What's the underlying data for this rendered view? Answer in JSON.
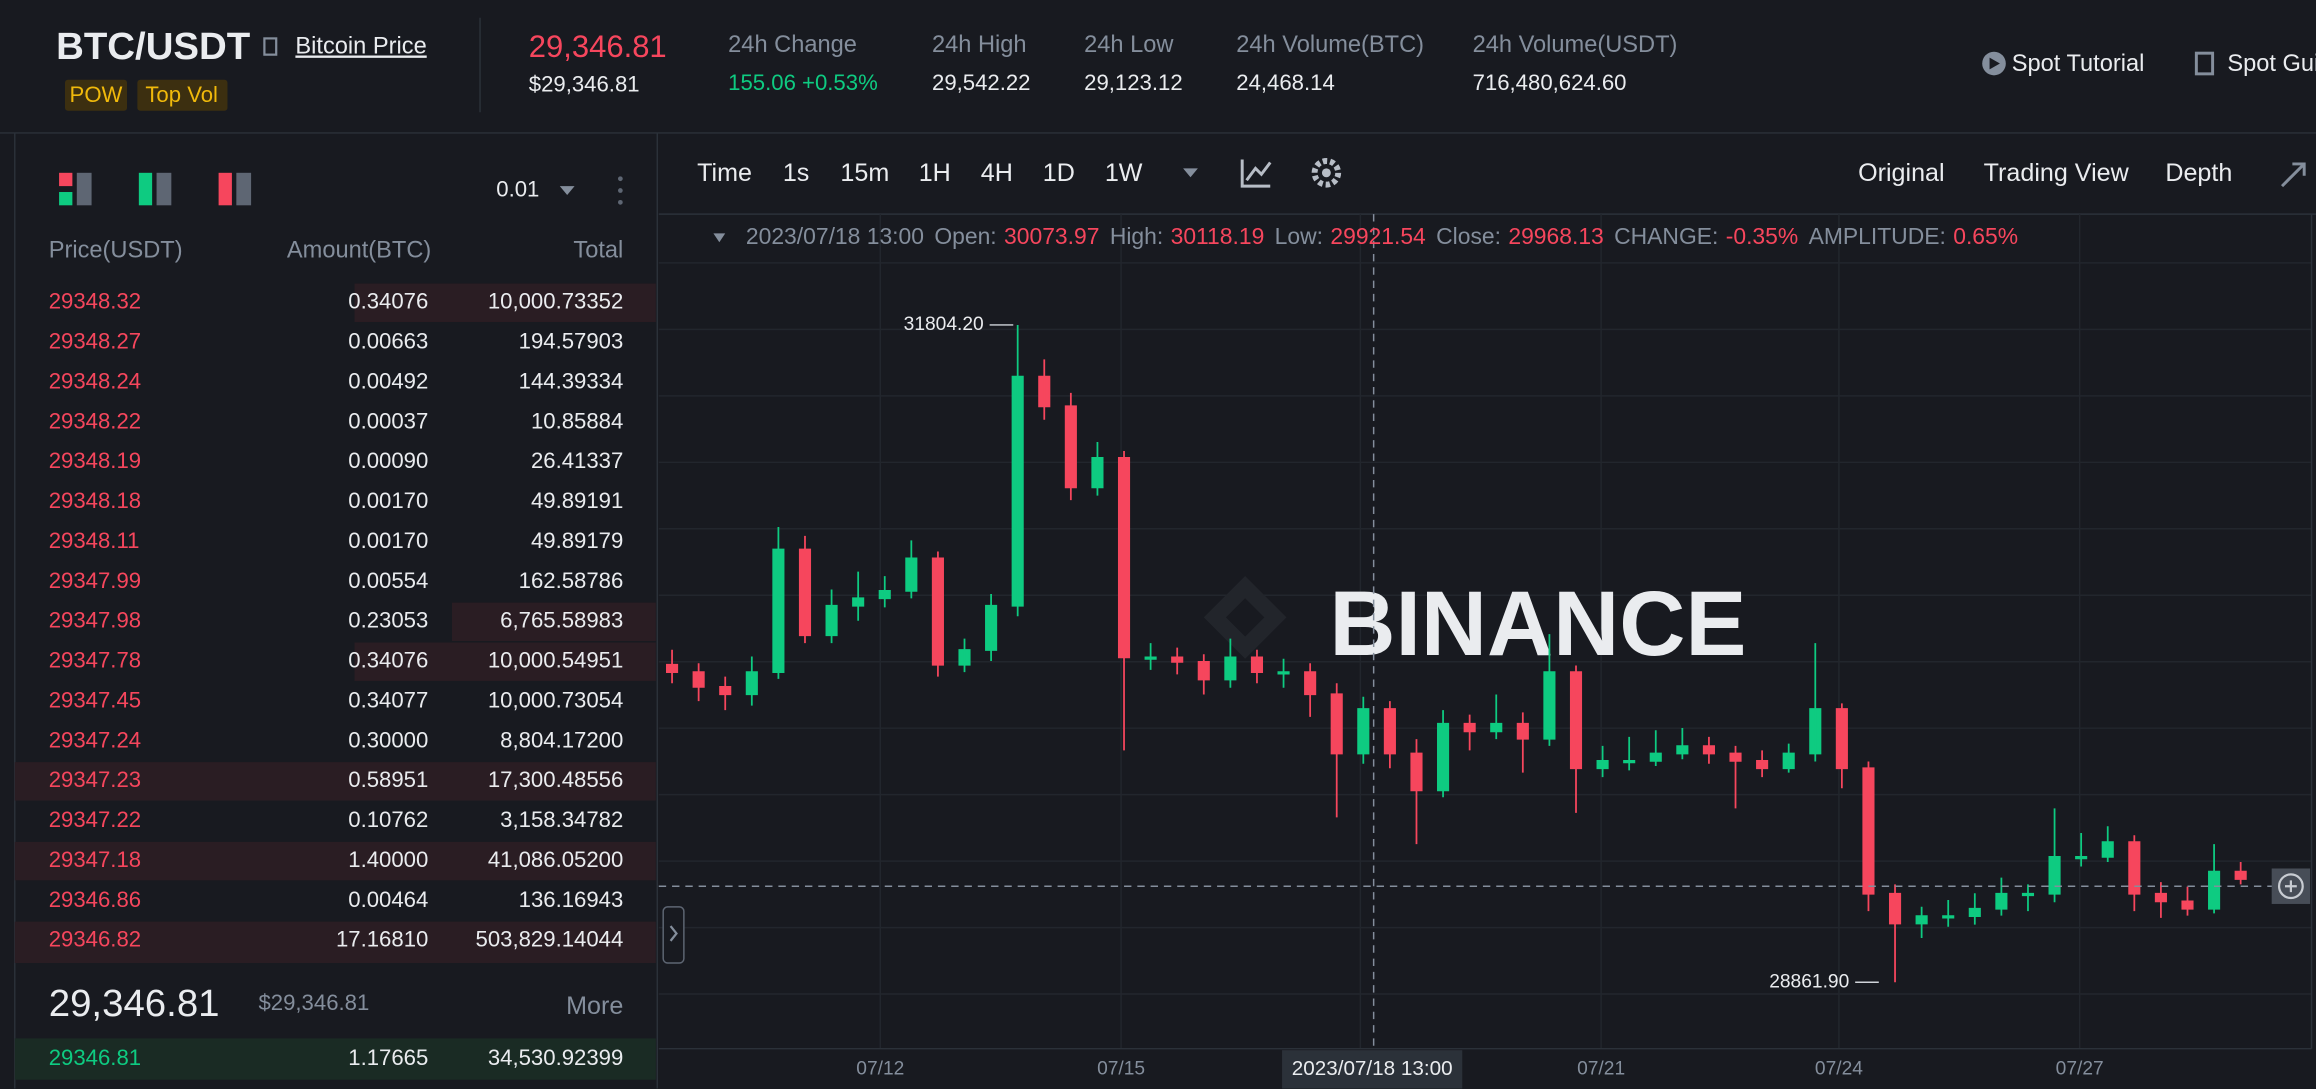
{
  "header": {
    "pair": "BTC/USDT",
    "link": "Bitcoin Price",
    "tags": [
      "POW",
      "Top Vol"
    ],
    "last_price": "29,346.81",
    "last_price_usd": "$29,346.81",
    "stats": [
      {
        "label": "24h Change",
        "value": "155.06 +0.53%"
      },
      {
        "label": "24h High",
        "value": "29,542.22"
      },
      {
        "label": "24h Low",
        "value": "29,123.12"
      },
      {
        "label": "24h Volume(BTC)",
        "value": "24,468.14"
      },
      {
        "label": "24h Volume(USDT)",
        "value": "716,480,624.60"
      }
    ],
    "links": [
      "Spot Tutorial",
      "Spot Guide"
    ]
  },
  "orderbook": {
    "precision": "0.01",
    "columns": [
      "Price(USDT)",
      "Amount(BTC)",
      "Total"
    ],
    "asks": [
      [
        "29348.32",
        "0.34076",
        "10,000.73352"
      ],
      [
        "29348.27",
        "0.00663",
        "194.57903"
      ],
      [
        "29348.24",
        "0.00492",
        "144.39334"
      ],
      [
        "29348.22",
        "0.00037",
        "10.85884"
      ],
      [
        "29348.19",
        "0.00090",
        "26.41337"
      ],
      [
        "29348.18",
        "0.00170",
        "49.89191"
      ],
      [
        "29348.11",
        "0.00170",
        "49.89179"
      ],
      [
        "29347.99",
        "0.00554",
        "162.58786"
      ],
      [
        "29347.98",
        "0.23053",
        "6,765.58983"
      ],
      [
        "29347.78",
        "0.34076",
        "10,000.54951"
      ],
      [
        "29347.45",
        "0.34077",
        "10,000.73054"
      ],
      [
        "29347.24",
        "0.30000",
        "8,804.17200"
      ],
      [
        "29347.23",
        "0.58951",
        "17,300.48556"
      ],
      [
        "29347.22",
        "0.10762",
        "3,158.34782"
      ],
      [
        "29347.18",
        "1.40000",
        "41,086.05200"
      ],
      [
        "29346.86",
        "0.00464",
        "136.16943"
      ],
      [
        "29346.82",
        "17.16810",
        "503,829.14044"
      ]
    ],
    "mid_price": "29,346.81",
    "mid_price_usd": "$29,346.81",
    "more": "More",
    "bids": [
      [
        "29346.81",
        "1.17665",
        "34,530.92399"
      ]
    ]
  },
  "chart": {
    "intervals": [
      "Time",
      "1s",
      "15m",
      "1H",
      "4H",
      "1D",
      "1W"
    ],
    "active_interval": "4H",
    "views": [
      "Original",
      "Trading View",
      "Depth"
    ],
    "active_view": "Original",
    "info": {
      "date": "2023/07/18 13:00",
      "fields": [
        {
          "label": "Open:",
          "value": "30073.97"
        },
        {
          "label": "High:",
          "value": "30118.19"
        },
        {
          "label": "Low:",
          "value": "29921.54"
        },
        {
          "label": "Close:",
          "value": "29968.13"
        },
        {
          "label": "CHANGE:",
          "value": "-0.35%"
        },
        {
          "label": "AMPLITUDE:",
          "value": "0.65%"
        }
      ]
    },
    "high_marker": "31804.20",
    "low_marker": "28861.90",
    "x_labels": [
      "07/12",
      "07/15",
      "07/21",
      "07/24",
      "07/27"
    ],
    "crosshair_label": "2023/07/18 13:00",
    "watermark": "BINANCE"
  },
  "candles": {
    "ohlc": [
      [
        30283,
        30350,
        30200,
        30250
      ],
      [
        30250,
        30290,
        30120,
        30184
      ],
      [
        30184,
        30230,
        30080,
        30151
      ],
      [
        30151,
        30320,
        30100,
        30250
      ],
      [
        30250,
        30900,
        30220,
        30799
      ],
      [
        30799,
        30860,
        30380,
        30415
      ],
      [
        30415,
        30620,
        30380,
        30547
      ],
      [
        30547,
        30700,
        30480,
        30581
      ],
      [
        30581,
        30680,
        30540,
        30614
      ],
      [
        30614,
        30840,
        30580,
        30759
      ],
      [
        30759,
        30790,
        30230,
        30283
      ],
      [
        30283,
        30400,
        30250,
        30349
      ],
      [
        30349,
        30600,
        30300,
        30547
      ],
      [
        30547,
        31804.2,
        30500,
        31573
      ],
      [
        31573,
        31650,
        31380,
        31440
      ],
      [
        31440,
        31500,
        31020,
        31077
      ],
      [
        31077,
        31280,
        31040,
        31209
      ],
      [
        31209,
        31240,
        29900,
        30316
      ],
      [
        30316,
        30380,
        30260,
        30316
      ],
      [
        30316,
        30360,
        30240,
        30296
      ],
      [
        30296,
        30330,
        30150,
        30217
      ],
      [
        30217,
        30400,
        30180,
        30316
      ],
      [
        30316,
        30350,
        30200,
        30250
      ],
      [
        30250,
        30310,
        30180,
        30250
      ],
      [
        30250,
        30290,
        30050,
        30151
      ],
      [
        30151,
        30200,
        29600,
        29886
      ],
      [
        29886,
        30140,
        29840,
        30085
      ],
      [
        30085,
        30120,
        29820,
        29886
      ],
      [
        29886,
        29950,
        29480,
        29721
      ],
      [
        29721,
        30080,
        29690,
        30019
      ],
      [
        30019,
        30060,
        29900,
        29985
      ],
      [
        29985,
        30150,
        29950,
        30019
      ],
      [
        30019,
        30070,
        29800,
        29952
      ],
      [
        29952,
        30420,
        29920,
        30250
      ],
      [
        30250,
        30280,
        29620,
        29820
      ],
      [
        29820,
        29920,
        29780,
        29853
      ],
      [
        29853,
        29960,
        29810,
        29853
      ],
      [
        29853,
        29990,
        29830,
        29886
      ],
      [
        29886,
        30000,
        29860,
        29919
      ],
      [
        29919,
        29960,
        29840,
        29886
      ],
      [
        29886,
        29920,
        29640,
        29853
      ],
      [
        29853,
        29900,
        29780,
        29820
      ],
      [
        29820,
        29930,
        29800,
        29886
      ],
      [
        29886,
        30380,
        29850,
        30085
      ],
      [
        30085,
        30110,
        29730,
        29820
      ],
      [
        29820,
        29850,
        29180,
        29258
      ],
      [
        29258,
        29300,
        28861.9,
        29125
      ],
      [
        29125,
        29200,
        29060,
        29158
      ],
      [
        29158,
        29230,
        29110,
        29158
      ],
      [
        29158,
        29260,
        29120,
        29191
      ],
      [
        29191,
        29330,
        29160,
        29258
      ],
      [
        29258,
        29300,
        29180,
        29258
      ],
      [
        29258,
        29640,
        29220,
        29423
      ],
      [
        29423,
        29530,
        29380,
        29423
      ],
      [
        29423,
        29560,
        29400,
        29489
      ],
      [
        29489,
        29520,
        29180,
        29258
      ],
      [
        29258,
        29310,
        29150,
        29224
      ],
      [
        29224,
        29290,
        29160,
        29191
      ],
      [
        29191,
        29480,
        29170,
        29357
      ],
      [
        29357,
        29400,
        29300,
        29324
      ]
    ]
  }
}
